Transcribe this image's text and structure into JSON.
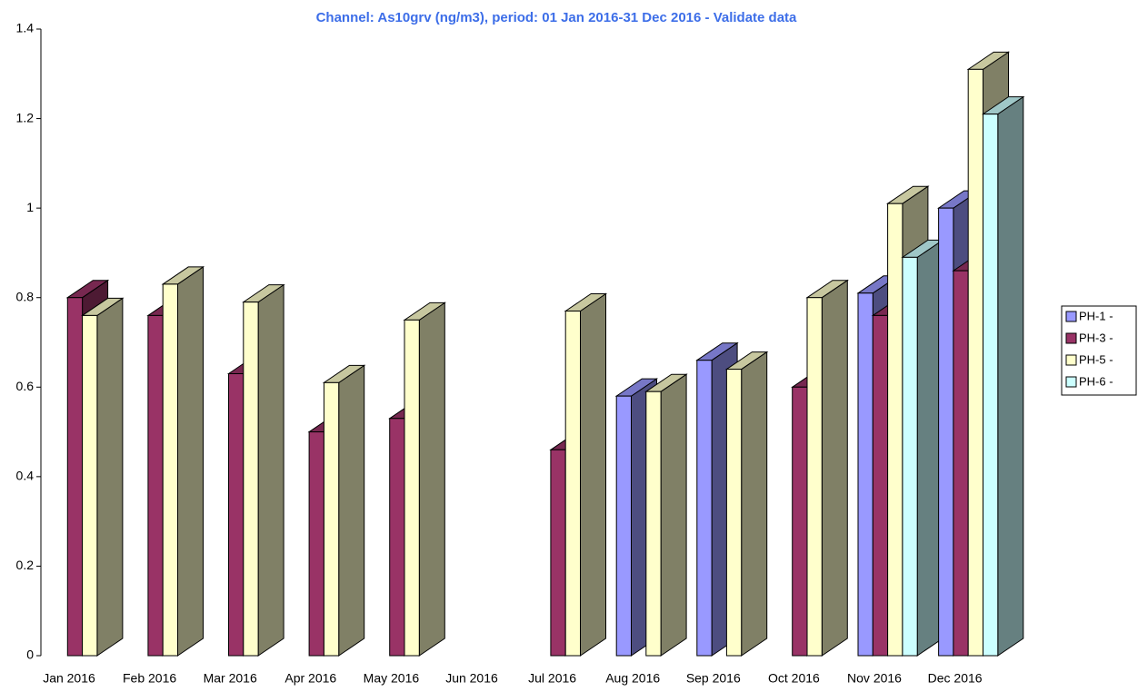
{
  "chart_data": {
    "type": "bar3d",
    "title": "Channel: As10grv (ng/m3), period: 01 Jan 2016-31 Dec 2016 - Validate data",
    "categories": [
      "Jan 2016",
      "Feb 2016",
      "Mar 2016",
      "Apr 2016",
      "May 2016",
      "Jun 2016",
      "Jul 2016",
      "Aug 2016",
      "Sep 2016",
      "Oct 2016",
      "Nov 2016",
      "Dec 2016"
    ],
    "series": [
      {
        "name": "PH-1 -",
        "color": "#9999ff",
        "values": [
          null,
          null,
          null,
          null,
          null,
          null,
          null,
          0.58,
          0.66,
          null,
          0.81,
          1.0
        ]
      },
      {
        "name": "PH-3 -",
        "color": "#993366",
        "values": [
          0.8,
          0.76,
          0.63,
          0.5,
          0.53,
          null,
          0.46,
          null,
          null,
          0.6,
          0.76,
          0.86
        ]
      },
      {
        "name": "PH-5 -",
        "color": "#ffffcc",
        "values": [
          0.76,
          0.83,
          0.79,
          0.61,
          0.75,
          null,
          0.77,
          0.59,
          0.64,
          0.8,
          1.01,
          1.31
        ]
      },
      {
        "name": "PH-6 -",
        "color": "#ccffff",
        "values": [
          null,
          null,
          null,
          null,
          null,
          null,
          null,
          null,
          null,
          null,
          0.89,
          1.21
        ]
      }
    ],
    "ylim": [
      0,
      1.4
    ],
    "yticks": [
      0,
      0.2,
      0.4,
      0.6,
      0.8,
      1,
      1.2,
      1.4
    ],
    "legend": "right"
  }
}
